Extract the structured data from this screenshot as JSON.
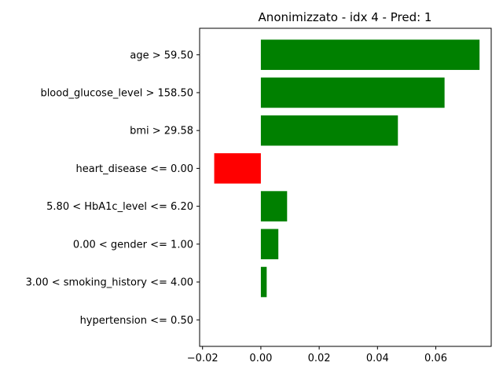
{
  "chart_data": {
    "type": "bar",
    "orientation": "horizontal",
    "title": "Anonimizzato - idx 4 - Pred: 1",
    "xlabel": "",
    "ylabel": "",
    "categories": [
      "age > 59.50",
      "blood_glucose_level > 158.50",
      "bmi > 29.58",
      "heart_disease <= 0.00",
      "5.80 < HbA1c_level <= 6.20",
      "0.00 < gender <= 1.00",
      "3.00 < smoking_history <= 4.00",
      "hypertension <= 0.50"
    ],
    "values": [
      0.075,
      0.063,
      0.047,
      -0.016,
      0.009,
      0.006,
      0.002,
      0.0
    ],
    "xlim": [
      -0.021,
      0.079
    ],
    "xticks": [
      -0.02,
      0.0,
      0.02,
      0.04,
      0.06
    ],
    "xtick_labels": [
      "−0.02",
      "0.00",
      "0.02",
      "0.04",
      "0.06"
    ],
    "grid": false,
    "legend": "none",
    "colors": {
      "positive": "#008000",
      "negative": "#ff0000"
    }
  }
}
